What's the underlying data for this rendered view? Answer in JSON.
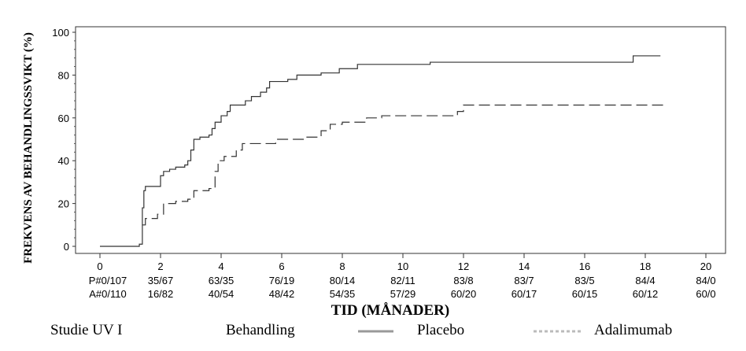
{
  "chart_data": {
    "type": "line",
    "title": "",
    "xlabel": "TID (MÅNADER)",
    "ylabel": "FREKVENS AV BEHANDLINGSSVIKT (%)",
    "xlim": [
      0,
      20
    ],
    "ylim": [
      0,
      100
    ],
    "xticks": [
      0,
      2,
      4,
      6,
      8,
      10,
      12,
      14,
      16,
      18,
      20
    ],
    "yticks": [
      0,
      20,
      40,
      60,
      80,
      100
    ],
    "series": [
      {
        "name": "Placebo",
        "style": "solid",
        "color": "#333333",
        "steps": [
          [
            0,
            0
          ],
          [
            1.3,
            1
          ],
          [
            1.4,
            18
          ],
          [
            1.45,
            26
          ],
          [
            1.5,
            28
          ],
          [
            1.9,
            28
          ],
          [
            2.0,
            33
          ],
          [
            2.1,
            35
          ],
          [
            2.3,
            36
          ],
          [
            2.5,
            37
          ],
          [
            2.8,
            38
          ],
          [
            2.9,
            40
          ],
          [
            3.0,
            45
          ],
          [
            3.1,
            50
          ],
          [
            3.3,
            51
          ],
          [
            3.6,
            52
          ],
          [
            3.7,
            55
          ],
          [
            3.8,
            58
          ],
          [
            4.0,
            61
          ],
          [
            4.2,
            63
          ],
          [
            4.3,
            66
          ],
          [
            4.8,
            68
          ],
          [
            5.0,
            70
          ],
          [
            5.3,
            72
          ],
          [
            5.5,
            74
          ],
          [
            5.6,
            77
          ],
          [
            6.2,
            78
          ],
          [
            6.5,
            80
          ],
          [
            7.3,
            81
          ],
          [
            7.9,
            83
          ],
          [
            8.5,
            85
          ],
          [
            10.9,
            86
          ],
          [
            17.6,
            89
          ],
          [
            18.5,
            89
          ]
        ]
      },
      {
        "name": "Adalimumab",
        "style": "dashed",
        "color": "#333333",
        "steps": [
          [
            1.4,
            10
          ],
          [
            1.5,
            13
          ],
          [
            1.9,
            15
          ],
          [
            2.1,
            20
          ],
          [
            2.5,
            21
          ],
          [
            2.9,
            22
          ],
          [
            3.1,
            26
          ],
          [
            3.6,
            27
          ],
          [
            3.8,
            35
          ],
          [
            3.9,
            40
          ],
          [
            4.1,
            42
          ],
          [
            4.5,
            45
          ],
          [
            4.7,
            48
          ],
          [
            5.8,
            50
          ],
          [
            6.8,
            51
          ],
          [
            7.3,
            54
          ],
          [
            7.6,
            57
          ],
          [
            8.0,
            58
          ],
          [
            8.8,
            60
          ],
          [
            9.3,
            61
          ],
          [
            11.8,
            63
          ],
          [
            12.0,
            66
          ],
          [
            18.7,
            66
          ]
        ]
      }
    ],
    "risk_table": {
      "placebo": [
        "P#0/107",
        "35/67",
        "63/35",
        "76/19",
        "80/14",
        "82/11",
        "83/8",
        "83/7",
        "83/5",
        "84/4",
        "84/0"
      ],
      "adalimumab": [
        "A#0/110",
        "16/82",
        "40/54",
        "48/42",
        "54/35",
        "57/29",
        "60/20",
        "60/17",
        "60/15",
        "60/12",
        "60/0"
      ]
    },
    "legend": {
      "study": "Studie UV I",
      "heading": "Behandling",
      "placebo": "Placebo",
      "adalimumab": "Adalimumab",
      "placement": "bottom"
    }
  }
}
